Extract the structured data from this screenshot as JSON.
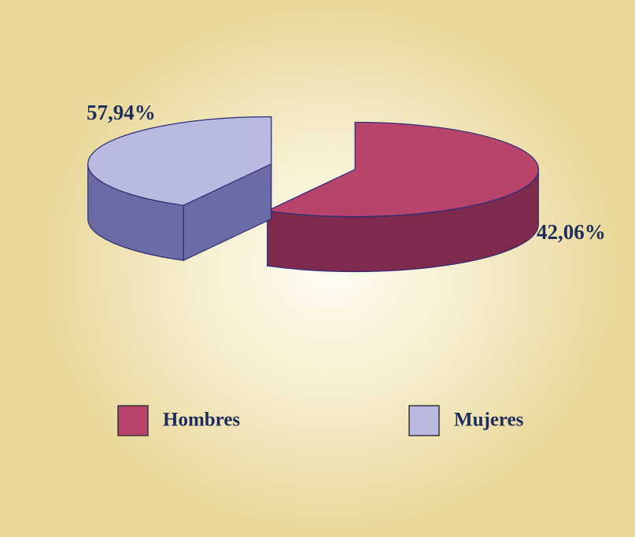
{
  "chart_data": {
    "type": "pie",
    "categories": [
      "Hombres",
      "Mujeres"
    ],
    "values": [
      57.94,
      42.06
    ],
    "value_labels": [
      "57,94%",
      "42,06%"
    ],
    "colors": [
      "#b8446b",
      "#bab9e2"
    ],
    "side_colors": [
      "#7d2a4c",
      "#6b6ba5"
    ]
  }
}
